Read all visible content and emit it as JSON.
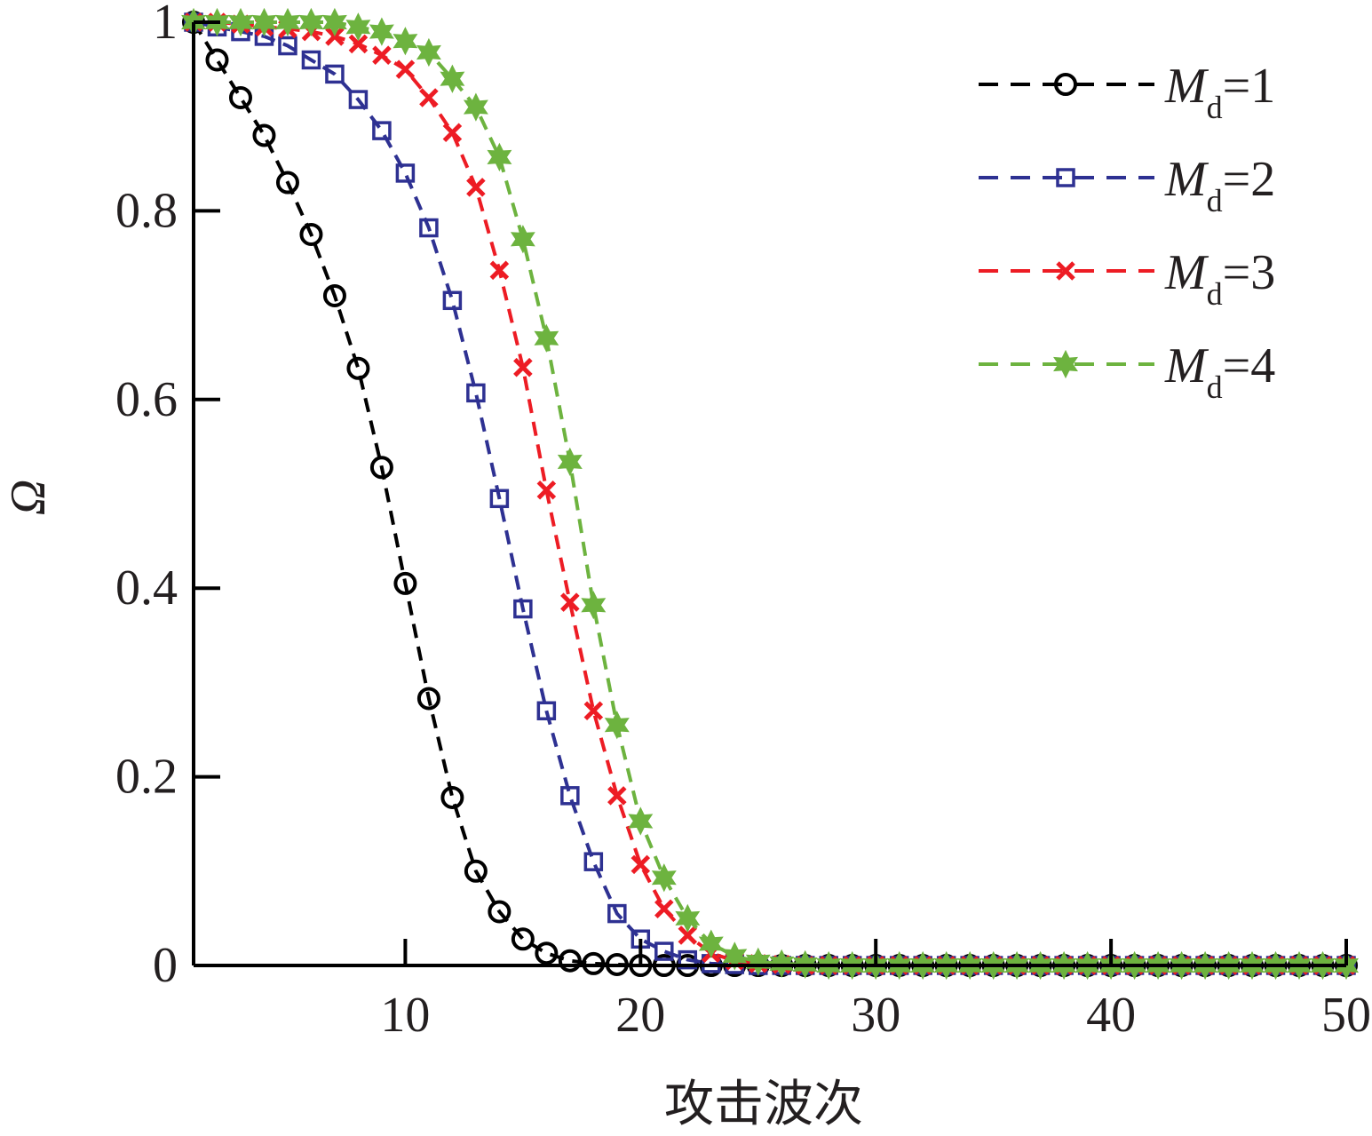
{
  "chart_data": {
    "type": "line",
    "xlabel": "攻击波次",
    "ylabel": "Ω",
    "xlim": [
      1,
      50
    ],
    "ylim": [
      0,
      1
    ],
    "x_ticks": [
      10,
      20,
      30,
      40,
      50
    ],
    "y_ticks": [
      0,
      0.2,
      0.4,
      0.6,
      0.8,
      1
    ],
    "y_tick_labels": [
      "0",
      "0.2",
      "0.4",
      "0.6",
      "0.8",
      "1"
    ],
    "legend_position": "top-right",
    "x": [
      1,
      2,
      3,
      4,
      5,
      6,
      7,
      8,
      9,
      10,
      11,
      12,
      13,
      14,
      15,
      16,
      17,
      18,
      19,
      20,
      21,
      22,
      23,
      24,
      25,
      26,
      27,
      28,
      29,
      30,
      31,
      32,
      33,
      34,
      35,
      36,
      37,
      38,
      39,
      40,
      41,
      42,
      43,
      44,
      45,
      46,
      47,
      48,
      49,
      50
    ],
    "series": [
      {
        "name": "Md=1",
        "legend_var": "M",
        "legend_sub": "d",
        "legend_value": "=1",
        "color": "#000000",
        "marker": "circle",
        "values": [
          1.0,
          0.96,
          0.92,
          0.88,
          0.83,
          0.775,
          0.71,
          0.633,
          0.528,
          0.405,
          0.283,
          0.178,
          0.1,
          0.057,
          0.028,
          0.013,
          0.005,
          0.002,
          0.001,
          0,
          0,
          0,
          0,
          0,
          0,
          0,
          0,
          0,
          0,
          0,
          0,
          0,
          0,
          0,
          0,
          0,
          0,
          0,
          0,
          0,
          0,
          0,
          0,
          0,
          0,
          0,
          0,
          0,
          0,
          0
        ]
      },
      {
        "name": "Md=2",
        "legend_var": "M",
        "legend_sub": "d",
        "legend_value": "=2",
        "color": "#2e3192",
        "marker": "square",
        "values": [
          1.0,
          0.995,
          0.99,
          0.985,
          0.975,
          0.96,
          0.945,
          0.918,
          0.885,
          0.84,
          0.782,
          0.705,
          0.607,
          0.495,
          0.378,
          0.27,
          0.18,
          0.11,
          0.055,
          0.028,
          0.015,
          0.006,
          0.002,
          0.001,
          0,
          0,
          0,
          0,
          0,
          0,
          0,
          0,
          0,
          0,
          0,
          0,
          0,
          0,
          0,
          0,
          0,
          0,
          0,
          0,
          0,
          0,
          0,
          0,
          0,
          0
        ]
      },
      {
        "name": "Md=3",
        "legend_var": "M",
        "legend_sub": "d",
        "legend_value": "=3",
        "color": "#ed1c24",
        "marker": "x",
        "values": [
          1.0,
          1.0,
          0.998,
          0.995,
          0.993,
          0.99,
          0.985,
          0.977,
          0.965,
          0.95,
          0.92,
          0.883,
          0.825,
          0.737,
          0.634,
          0.504,
          0.385,
          0.27,
          0.18,
          0.107,
          0.06,
          0.032,
          0.013,
          0.005,
          0.002,
          0.001,
          0,
          0,
          0,
          0,
          0,
          0,
          0,
          0,
          0,
          0,
          0,
          0,
          0,
          0,
          0,
          0,
          0,
          0,
          0,
          0,
          0,
          0,
          0,
          0
        ]
      },
      {
        "name": "Md=4",
        "legend_var": "M",
        "legend_sub": "d",
        "legend_value": "=4",
        "color": "#6db33f",
        "marker": "star",
        "values": [
          1.0,
          1.0,
          1.0,
          1.0,
          1.0,
          1.0,
          1.0,
          0.995,
          0.99,
          0.98,
          0.968,
          0.94,
          0.91,
          0.857,
          0.77,
          0.665,
          0.534,
          0.382,
          0.255,
          0.153,
          0.093,
          0.05,
          0.023,
          0.01,
          0.004,
          0.002,
          0.001,
          0,
          0,
          0,
          0,
          0,
          0,
          0,
          0,
          0,
          0,
          0,
          0,
          0,
          0,
          0,
          0,
          0,
          0,
          0,
          0,
          0,
          0,
          0
        ]
      }
    ]
  }
}
